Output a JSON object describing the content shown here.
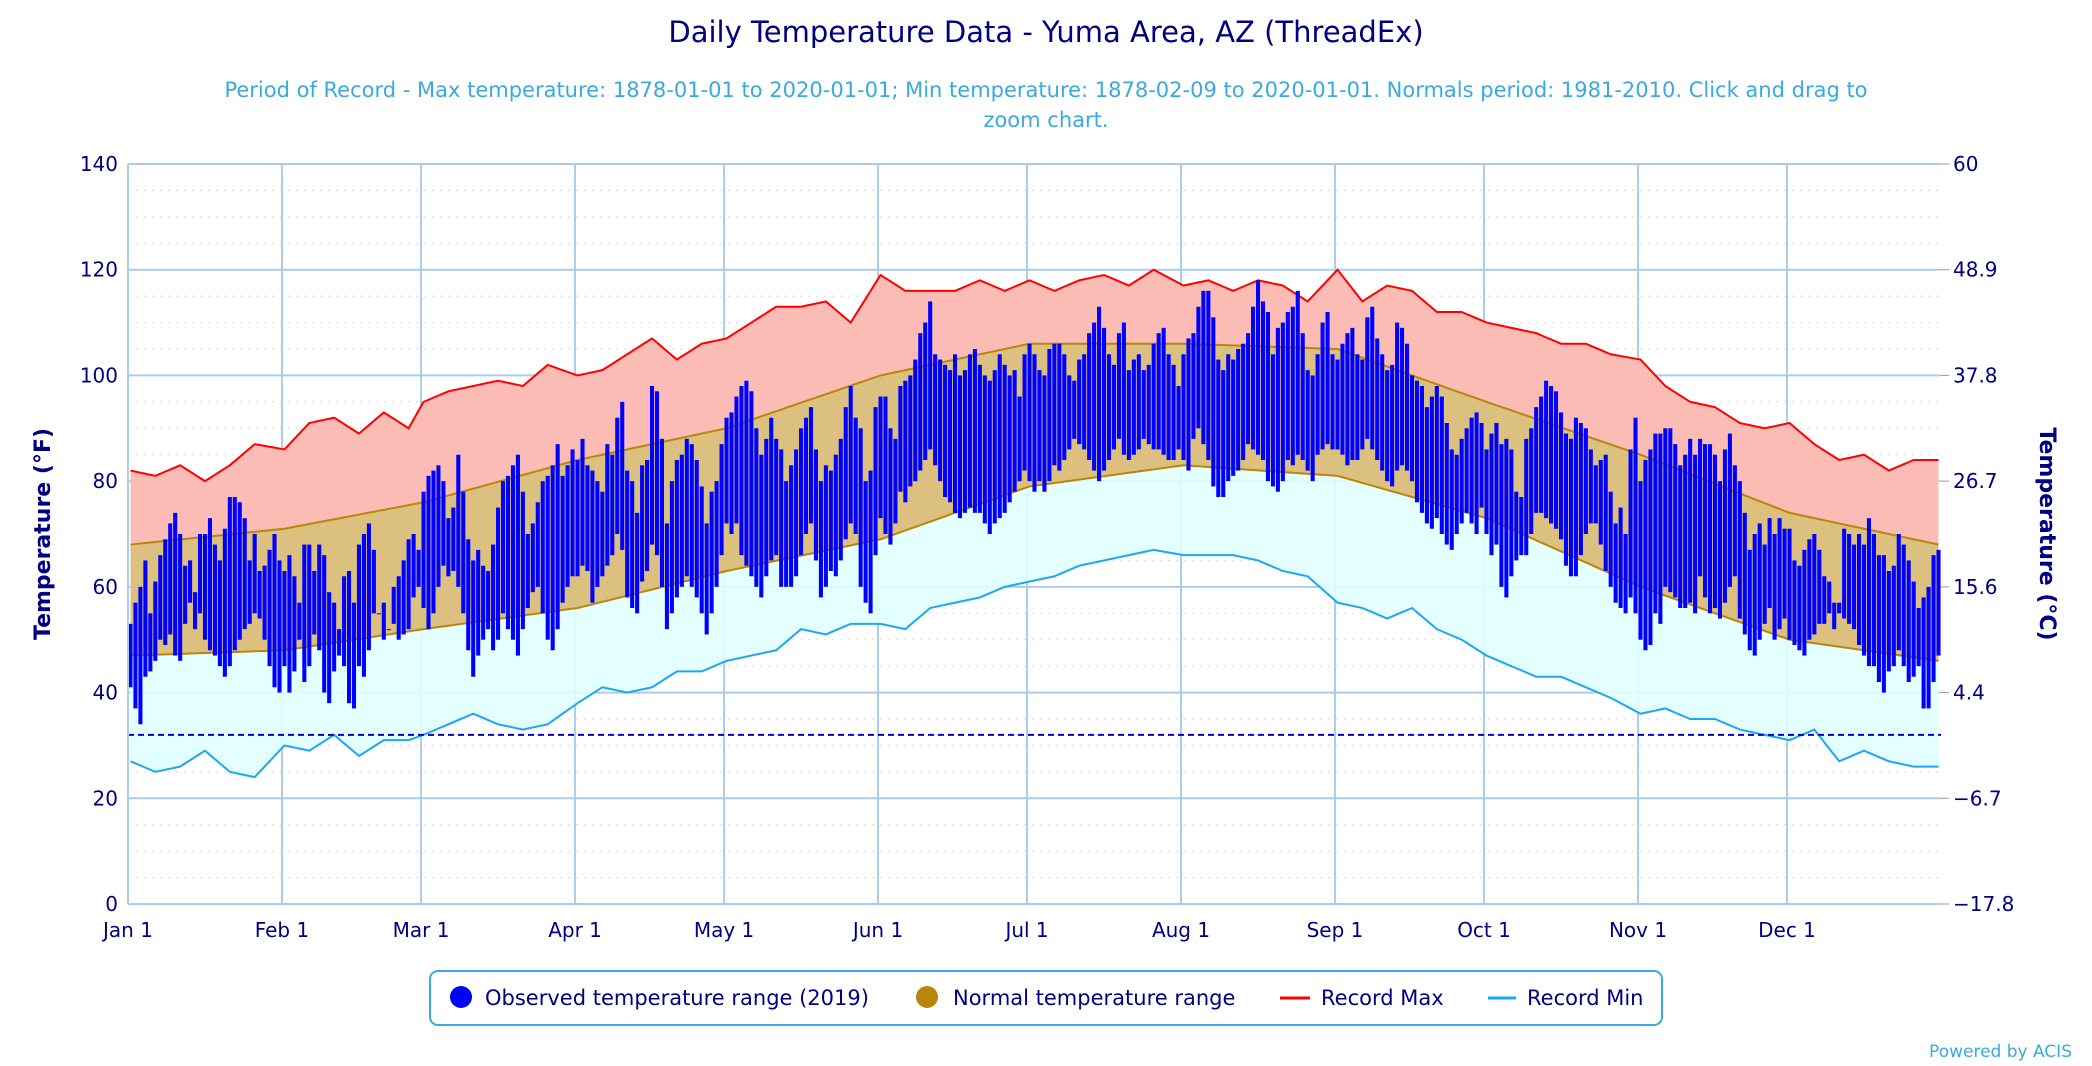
{
  "chart_data": {
    "type": "bar",
    "title": "Daily Temperature Data - Yuma Area, AZ (ThreadEx)",
    "subtitle_line1": "Period of Record - Max temperature: 1878-01-01 to 2020-01-01; Min temperature: 1878-02-09 to 2020-01-01. Normals period: 1981-2010. Click and drag to",
    "subtitle_line2": "zoom chart.",
    "ylabel": "Temperature (°F)",
    "ylabel_right": "Temperature (°C)",
    "ylim": [
      0,
      140
    ],
    "yticks": [
      "0",
      "20",
      "40",
      "60",
      "80",
      "100",
      "120",
      "140"
    ],
    "yticks_right": [
      "−17.8",
      "−6.7",
      "4.4",
      "15.6",
      "26.7",
      "37.8",
      "48.9",
      "60"
    ],
    "months": [
      "Jan 1",
      "Feb 1",
      "Mar 1",
      "Apr 1",
      "May 1",
      "Jun 1",
      "Jul 1",
      "Aug 1",
      "Sep 1",
      "Oct 1",
      "Nov 1",
      "Dec 1"
    ],
    "freezing_line": 32,
    "grid": true,
    "legend_placement": "bottom",
    "legend": {
      "observed": "Observed temperature range (2019)",
      "normal": "Normal temperature range",
      "record_max": "Record Max",
      "record_min": "Record Min"
    },
    "colors": {
      "observed": "#0000ff",
      "normal": "#b8860b",
      "normal_fill": "#dbc080",
      "record_max": "#ff0000",
      "record_max_fill": "#fcbcb6",
      "record_min": "#1ea7ef",
      "record_min_fill": "#e0ffff",
      "text": "#000080",
      "accent": "#3aa9e0",
      "grid": "#abcde8"
    },
    "observed_high": {
      "Jan": [
        53,
        57,
        60,
        65,
        55,
        61,
        66,
        69,
        72,
        74,
        70,
        64,
        65,
        59,
        70,
        70,
        73,
        68,
        65,
        71,
        77,
        77,
        76,
        73,
        65,
        70,
        63,
        64,
        67,
        70,
        65
      ],
      "Feb": [
        63,
        66,
        62,
        57,
        68,
        68,
        63,
        68,
        66,
        59,
        57,
        52,
        62,
        63,
        57,
        68,
        70,
        72,
        67,
        55,
        57,
        52,
        60,
        62,
        65,
        69,
        70,
        67
      ],
      "Mar": [
        78,
        81,
        82,
        83,
        80,
        73,
        75,
        85,
        78,
        69,
        65,
        67,
        64,
        63,
        68,
        75,
        80,
        81,
        83,
        85,
        78,
        70,
        72,
        76,
        80,
        81,
        83,
        87,
        81,
        83,
        86
      ],
      "Apr": [
        84,
        88,
        83,
        82,
        80,
        78,
        87,
        85,
        92,
        95,
        82,
        80,
        74,
        83,
        84,
        98,
        97,
        88,
        72,
        80,
        84,
        85,
        88,
        87,
        84,
        79,
        72,
        78,
        80,
        87
      ],
      "May": [
        92,
        93,
        96,
        98,
        99,
        97,
        90,
        85,
        88,
        92,
        88,
        86,
        80,
        83,
        86,
        90,
        92,
        94,
        86,
        80,
        83,
        82,
        85,
        88,
        94,
        98,
        92,
        90,
        80,
        82,
        94
      ],
      "Jun": [
        96,
        96,
        90,
        88,
        98,
        99,
        100,
        103,
        108,
        110,
        114,
        104,
        103,
        102,
        101,
        104,
        100,
        101,
        104,
        105,
        102,
        100,
        99,
        101,
        104,
        102,
        100,
        101,
        96,
        104
      ],
      "Jul": [
        106,
        104,
        101,
        100,
        105,
        106,
        106,
        104,
        100,
        99,
        103,
        104,
        108,
        110,
        113,
        109,
        104,
        102,
        108,
        110,
        101,
        103,
        104,
        101,
        102,
        106,
        108,
        109,
        104,
        102,
        98
      ],
      "Aug": [
        104,
        107,
        108,
        113,
        116,
        116,
        111,
        103,
        101,
        104,
        103,
        105,
        106,
        108,
        113,
        118,
        114,
        112,
        104,
        109,
        110,
        112,
        113,
        116,
        108,
        101,
        100,
        104,
        110,
        112,
        104
      ],
      "Sep": [
        103,
        106,
        108,
        109,
        104,
        103,
        111,
        113,
        107,
        104,
        101,
        102,
        110,
        109,
        106,
        100,
        99,
        98,
        94,
        96,
        98,
        96,
        91,
        86,
        85,
        88,
        90,
        92,
        93,
        91
      ],
      "Oct": [
        86,
        89,
        91,
        87,
        88,
        86,
        78,
        77,
        88,
        90,
        94,
        96,
        99,
        98,
        97,
        93,
        89,
        88,
        92,
        91,
        90,
        86,
        83,
        84,
        85,
        78,
        72,
        75,
        70,
        86,
        92
      ],
      "Nov": [
        80,
        84,
        86,
        89,
        89,
        90,
        90,
        87,
        83,
        85,
        88,
        85,
        88,
        87,
        87,
        85,
        80,
        86,
        89,
        83,
        80,
        74,
        67,
        70,
        72,
        68,
        73,
        70,
        73,
        71
      ],
      "Dec": [
        71,
        65,
        64,
        67,
        69,
        70,
        67,
        62,
        61,
        57,
        57,
        71,
        70,
        68,
        70,
        68,
        73,
        70,
        66,
        66,
        63,
        64,
        70,
        68,
        65,
        61,
        56,
        58,
        60,
        66,
        67
      ]
    },
    "observed_low": {
      "Jan": [
        41,
        37,
        34,
        43,
        44,
        46,
        50,
        49,
        51,
        47,
        46,
        53,
        57,
        52,
        55,
        50,
        48,
        47,
        45,
        43,
        45,
        48,
        50,
        52,
        53,
        55,
        54,
        50,
        45,
        41,
        40
      ],
      "Feb": [
        45,
        40,
        44,
        50,
        42,
        45,
        51,
        48,
        40,
        38,
        44,
        47,
        45,
        38,
        37,
        45,
        43,
        48,
        55,
        57,
        50,
        52,
        53,
        50,
        51,
        52,
        58,
        60
      ],
      "Mar": [
        56,
        52,
        55,
        60,
        64,
        62,
        63,
        60,
        55,
        48,
        43,
        47,
        50,
        52,
        48,
        50,
        55,
        52,
        50,
        47,
        52,
        56,
        59,
        60,
        55,
        50,
        48,
        52,
        57,
        60,
        62
      ],
      "Apr": [
        62,
        64,
        63,
        57,
        60,
        62,
        64,
        66,
        70,
        67,
        58,
        56,
        55,
        61,
        63,
        68,
        66,
        60,
        52,
        55,
        58,
        60,
        62,
        60,
        58,
        55,
        51,
        55,
        60,
        66
      ],
      "May": [
        72,
        70,
        72,
        66,
        64,
        62,
        60,
        58,
        62,
        65,
        66,
        60,
        60,
        60,
        62,
        66,
        70,
        72,
        65,
        58,
        60,
        63,
        62,
        65,
        69,
        72,
        70,
        60,
        57,
        55,
        66
      ],
      "Jun": [
        73,
        70,
        68,
        72,
        78,
        76,
        79,
        80,
        82,
        84,
        86,
        83,
        80,
        77,
        76,
        74,
        73,
        74,
        75,
        74,
        74,
        72,
        70,
        72,
        73,
        74,
        76,
        78,
        80,
        82
      ],
      "Jul": [
        80,
        78,
        80,
        78,
        80,
        83,
        82,
        84,
        86,
        88,
        87,
        86,
        84,
        82,
        80,
        82,
        84,
        86,
        88,
        85,
        84,
        85,
        86,
        88,
        87,
        86,
        86,
        85,
        84,
        84,
        86
      ],
      "Aug": [
        84,
        82,
        88,
        90,
        87,
        84,
        79,
        77,
        77,
        80,
        81,
        82,
        84,
        87,
        86,
        85,
        84,
        80,
        79,
        78,
        80,
        84,
        83,
        85,
        84,
        82,
        80,
        85,
        86,
        87,
        86
      ],
      "Sep": [
        86,
        85,
        83,
        84,
        84,
        86,
        88,
        86,
        84,
        82,
        80,
        79,
        82,
        83,
        82,
        80,
        76,
        74,
        72,
        71,
        73,
        70,
        68,
        67,
        70,
        72,
        74,
        72,
        70,
        75
      ],
      "Oct": [
        70,
        66,
        68,
        60,
        58,
        62,
        65,
        66,
        66,
        70,
        74,
        74,
        73,
        72,
        71,
        69,
        64,
        62,
        62,
        66,
        70,
        72,
        72,
        68,
        63,
        60,
        57,
        56,
        55,
        58,
        55
      ],
      "Nov": [
        50,
        48,
        49,
        55,
        53,
        60,
        59,
        58,
        56,
        56,
        57,
        55,
        62,
        58,
        55,
        56,
        54,
        57,
        60,
        62,
        54,
        51,
        48,
        47,
        50,
        53,
        56,
        50,
        52,
        54
      ],
      "Dec": [
        50,
        49,
        48,
        47,
        50,
        51,
        53,
        53,
        55,
        52,
        55,
        54,
        53,
        52,
        49,
        47,
        45,
        45,
        42,
        40,
        44,
        45,
        48,
        45,
        42,
        43,
        45,
        37,
        37,
        42,
        47
      ]
    },
    "record_max_every_5_days_from_1st": {
      "Jan": [
        82,
        81,
        83,
        80,
        83,
        87
      ],
      "Feb": [
        86,
        91,
        92,
        89,
        93,
        90
      ],
      "Mar": [
        95,
        97,
        98,
        99,
        98,
        102
      ],
      "Apr": [
        100,
        101,
        104,
        107,
        103,
        106
      ],
      "May": [
        107,
        110,
        113,
        113,
        114,
        110
      ],
      "Jun": [
        119,
        116,
        116,
        116,
        118,
        116
      ],
      "Jul": [
        118,
        116,
        118,
        119,
        117,
        120
      ],
      "Aug": [
        117,
        118,
        116,
        118,
        117,
        114
      ],
      "Sep": [
        120,
        114,
        117,
        116,
        112,
        112
      ],
      "Oct": [
        110,
        109,
        108,
        106,
        106,
        104
      ],
      "Nov": [
        103,
        98,
        95,
        94,
        91,
        90
      ],
      "Dec": [
        91,
        87,
        84,
        85,
        82,
        84
      ]
    },
    "record_min_every_5_days_from_1st": {
      "Jan": [
        27,
        25,
        26,
        29,
        25,
        24
      ],
      "Feb": [
        30,
        29,
        32,
        28,
        31,
        31
      ],
      "Mar": [
        32,
        34,
        36,
        34,
        33,
        34
      ],
      "Apr": [
        38,
        41,
        40,
        41,
        44,
        44
      ],
      "May": [
        46,
        47,
        48,
        52,
        51,
        53
      ],
      "Jun": [
        53,
        52,
        56,
        57,
        58,
        60
      ],
      "Jul": [
        61,
        62,
        64,
        65,
        66,
        67
      ],
      "Aug": [
        66,
        66,
        66,
        65,
        63,
        62
      ],
      "Sep": [
        57,
        56,
        54,
        56,
        52,
        50
      ],
      "Oct": [
        47,
        45,
        43,
        43,
        41,
        39
      ],
      "Nov": [
        36,
        37,
        35,
        35,
        33,
        32
      ],
      "Dec": [
        31,
        33,
        27,
        29,
        27,
        26
      ]
    },
    "normal_max_1st_of_month": [
      68,
      71,
      76,
      84,
      90,
      100,
      106,
      106,
      105,
      95,
      85,
      74
    ],
    "normal_min_1st_of_month": [
      47,
      48,
      52,
      56,
      63,
      69,
      79,
      83,
      81,
      73,
      60,
      50
    ],
    "normal_dec31": {
      "max": 68,
      "min": 46
    }
  },
  "footer": {
    "credit": "Powered by ACIS"
  }
}
